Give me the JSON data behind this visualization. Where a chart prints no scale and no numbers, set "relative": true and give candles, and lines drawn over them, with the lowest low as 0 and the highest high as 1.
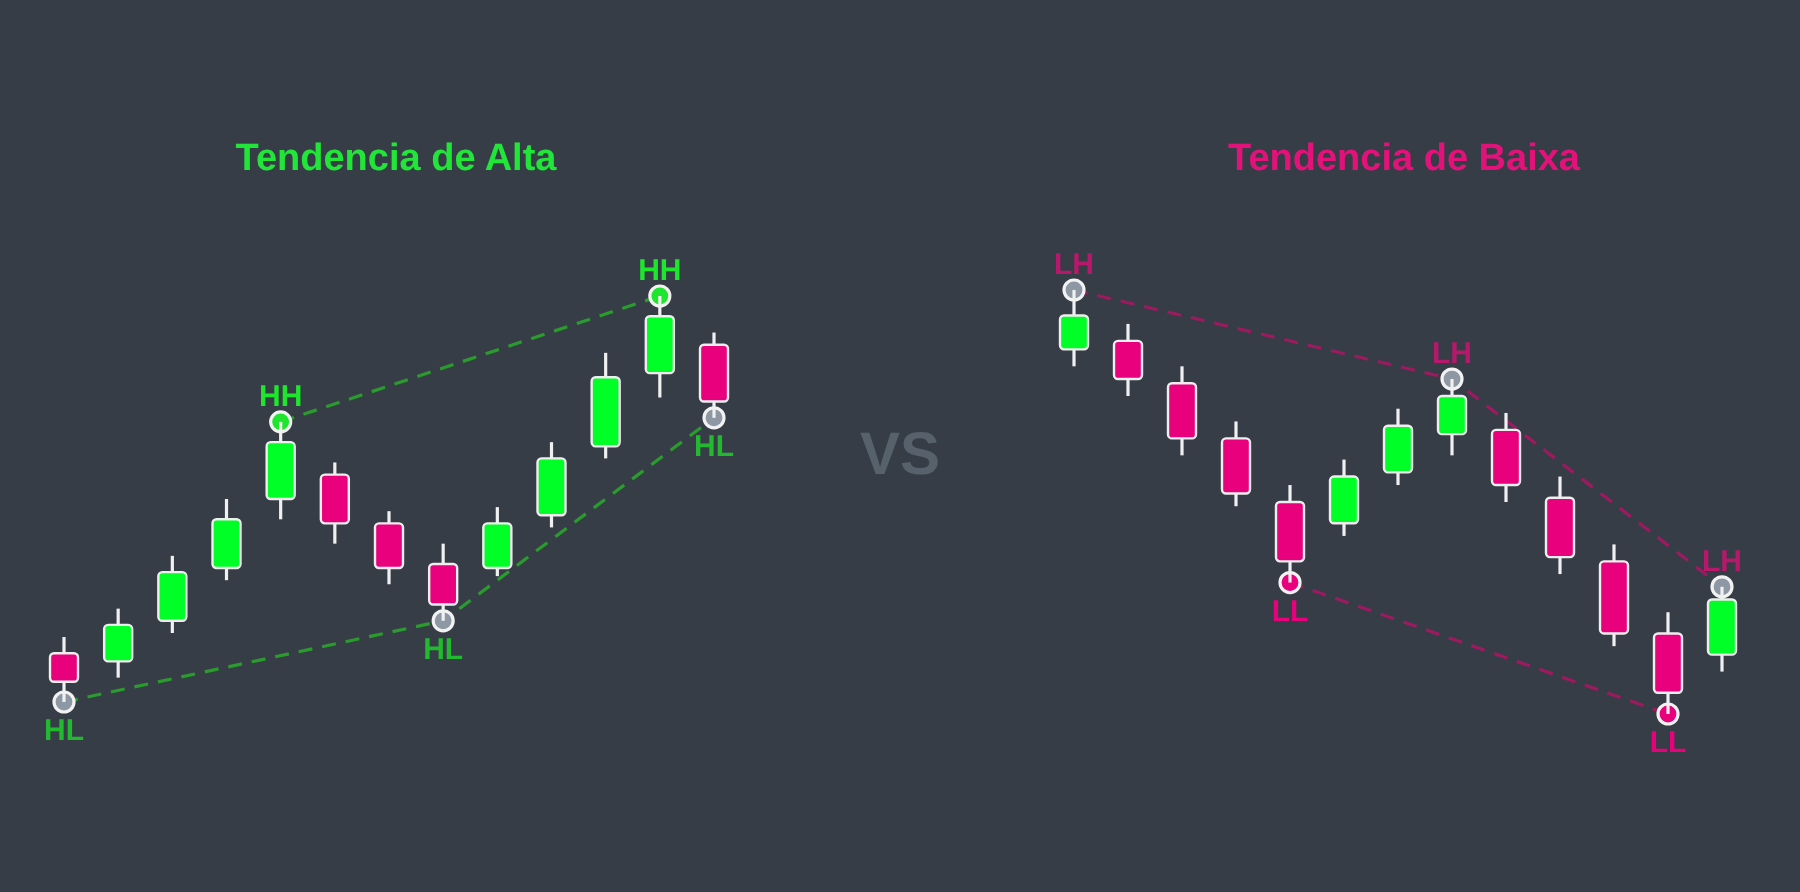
{
  "chart_data": [
    {
      "type": "candlestick",
      "title": "Tendencia de Alta",
      "relative": true,
      "categories": [
        null,
        null,
        null,
        null,
        null,
        null,
        null,
        null,
        null,
        null,
        null,
        null,
        null
      ],
      "ohlc": [
        [
          0.12,
          0.16,
          0,
          0.05
        ],
        [
          0.1,
          0.23,
          0.06,
          0.19
        ],
        [
          0.2,
          0.36,
          0.17,
          0.32
        ],
        [
          0.33,
          0.5,
          0.3,
          0.45
        ],
        [
          0.5,
          0.69,
          0.45,
          0.64
        ],
        [
          0.56,
          0.59,
          0.39,
          0.44
        ],
        [
          0.44,
          0.47,
          0.29,
          0.33
        ],
        [
          0.34,
          0.39,
          0.2,
          0.24
        ],
        [
          0.33,
          0.48,
          0.31,
          0.44
        ],
        [
          0.46,
          0.64,
          0.43,
          0.6
        ],
        [
          0.63,
          0.86,
          0.6,
          0.8
        ],
        [
          0.81,
          1,
          0.75,
          0.95
        ],
        [
          0.88,
          0.91,
          0.7,
          0.74
        ]
      ],
      "colors": [
        "#e8007c",
        "#00ff26",
        "#00ff26",
        "#00ff26",
        "#00ff26",
        "#e8007c",
        "#e8007c",
        "#e8007c",
        "#00ff26",
        "#00ff26",
        "#00ff26",
        "#00ff26",
        "#e8007c"
      ],
      "series": [
        {
          "type": "line",
          "color": "#2a9c2e",
          "line_style": "dashed",
          "marker": "none",
          "values": [
            0,
            null,
            null,
            null,
            null,
            null,
            null,
            0.2,
            null,
            null,
            null,
            null,
            0.7
          ]
        },
        {
          "type": "line",
          "color": "#2a9c2e",
          "line_style": "dashed",
          "marker": "none",
          "values": [
            null,
            null,
            null,
            null,
            0.69,
            null,
            null,
            null,
            null,
            null,
            null,
            1,
            null
          ]
        },
        {
          "type": "scatter",
          "color": "#8d98a4",
          "marker": "circle",
          "values": [
            0,
            null,
            null,
            null,
            null,
            null,
            null,
            0.2,
            null,
            null,
            null,
            null,
            0.7
          ]
        },
        {
          "type": "scatter",
          "color": "#1ee62e",
          "marker": "circle",
          "values": [
            null,
            null,
            null,
            null,
            0.69,
            null,
            null,
            null,
            null,
            null,
            null,
            1,
            null
          ]
        }
      ],
      "annotations": [
        {
          "text": "HL",
          "y": 0
        },
        {
          "text": "HH",
          "y": 0.69
        },
        {
          "text": "HL",
          "y": 0.2
        },
        {
          "text": "HH",
          "y": 1
        },
        {
          "text": "HL",
          "y": 0.7
        }
      ]
    },
    {
      "type": "other",
      "annotations": [
        "VS"
      ]
    },
    {
      "type": "candlestick",
      "title": "Tendencia de Baixa",
      "relative": true,
      "categories": [
        null,
        null,
        null,
        null,
        null,
        null,
        null,
        null,
        null,
        null,
        null,
        null,
        null
      ],
      "ohlc": [
        [
          0.86,
          1,
          0.82,
          0.94
        ],
        [
          0.88,
          0.92,
          0.75,
          0.79
        ],
        [
          0.78,
          0.82,
          0.61,
          0.65
        ],
        [
          0.65,
          0.69,
          0.49,
          0.52
        ],
        [
          0.5,
          0.54,
          0.31,
          0.36
        ],
        [
          0.45,
          0.6,
          0.42,
          0.56
        ],
        [
          0.57,
          0.72,
          0.54,
          0.68
        ],
        [
          0.66,
          0.79,
          0.61,
          0.75
        ],
        [
          0.67,
          0.71,
          0.5,
          0.54
        ],
        [
          0.51,
          0.56,
          0.33,
          0.37
        ],
        [
          0.36,
          0.4,
          0.16,
          0.19
        ],
        [
          0.19,
          0.24,
          0,
          0.05
        ],
        [
          0.14,
          0.3,
          0.1,
          0.27
        ]
      ],
      "colors": [
        "#00ff26",
        "#e8007c",
        "#e8007c",
        "#e8007c",
        "#e8007c",
        "#00ff26",
        "#00ff26",
        "#00ff26",
        "#e8007c",
        "#e8007c",
        "#e8007c",
        "#e8007c",
        "#00ff26"
      ],
      "series": [
        {
          "type": "line",
          "color": "#9e1a60",
          "line_style": "dashed",
          "marker": "none",
          "values": [
            1,
            null,
            null,
            null,
            null,
            null,
            null,
            0.79,
            null,
            null,
            null,
            null,
            0.3
          ]
        },
        {
          "type": "line",
          "color": "#9e1a60",
          "line_style": "dashed",
          "marker": "none",
          "values": [
            null,
            null,
            null,
            null,
            0.31,
            null,
            null,
            null,
            null,
            null,
            null,
            0,
            null
          ]
        },
        {
          "type": "scatter",
          "color": "#8d98a4",
          "marker": "circle",
          "values": [
            1,
            null,
            null,
            null,
            null,
            null,
            null,
            0.79,
            null,
            null,
            null,
            null,
            0.3
          ]
        },
        {
          "type": "scatter",
          "color": "#e8007c",
          "marker": "circle",
          "values": [
            null,
            null,
            null,
            null,
            0.31,
            null,
            null,
            null,
            null,
            null,
            null,
            0,
            null
          ]
        }
      ],
      "annotations": [
        {
          "text": "LH",
          "y": 1
        },
        {
          "text": "LL",
          "y": 0.31
        },
        {
          "text": "LH",
          "y": 0.79
        },
        {
          "text": "LL",
          "y": 0
        },
        {
          "text": "LH",
          "y": 0.3
        }
      ]
    }
  ]
}
